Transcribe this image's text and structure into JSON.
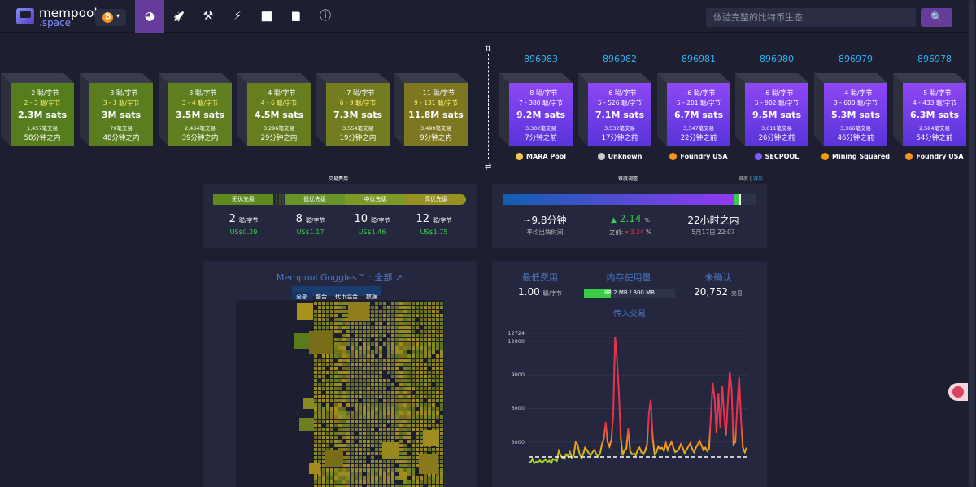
{
  "nav": {
    "logo_top": "mempool",
    "logo_bottom": ".space",
    "network_symbol": "₿",
    "items": [
      {
        "name": "dashboard",
        "icon": "gauge-icon",
        "glyph": "◕",
        "active": true
      },
      {
        "name": "accelerate",
        "icon": "rocket-icon",
        "glyph": "🚀",
        "active": false
      },
      {
        "name": "mining",
        "icon": "hammer-icon",
        "glyph": "⚒",
        "active": false
      },
      {
        "name": "lightning",
        "icon": "bolt-icon",
        "glyph": "⚡",
        "active": false
      },
      {
        "name": "graphs",
        "icon": "chart-area-icon",
        "glyph": "📈",
        "active": false
      },
      {
        "name": "docs",
        "icon": "book-icon",
        "glyph": "📘",
        "active": false
      },
      {
        "name": "about",
        "icon": "info-icon",
        "glyph": "ⓘ",
        "active": false
      }
    ],
    "search_placeholder": "体验完整的比特币生态",
    "search_icon": "🔍"
  },
  "pending_blocks": [
    {
      "fee": "~2 聪/字节",
      "range": "2 - 3 聪/字节",
      "size": "2.3M sats",
      "tx": "1,457笔交易",
      "time": "58分钟之内",
      "color": "#557d1e"
    },
    {
      "fee": "~3 聪/字节",
      "range": "3 - 3 聪/字节",
      "size": "3M sats",
      "tx": "79笔交易",
      "time": "48分钟之内",
      "color": "#5a7e1f"
    },
    {
      "fee": "~3 聪/字节",
      "range": "3 - 4 聪/字节",
      "size": "3.5M sats",
      "tx": "2,464笔交易",
      "time": "39分钟之内",
      "color": "#5f7f20"
    },
    {
      "fee": "~4 聪/字节",
      "range": "4 - 6 聪/字节",
      "size": "4.5M sats",
      "tx": "3,296笔交易",
      "time": "29分钟之内",
      "color": "#677e20"
    },
    {
      "fee": "~7 聪/字节",
      "range": "6 - 9 聪/字节",
      "size": "7.3M sats",
      "tx": "3,554笔交易",
      "time": "19分钟之内",
      "color": "#747c21"
    },
    {
      "fee": "~11 聪/字节",
      "range": "9 - 131 聪/字节",
      "size": "11.8M sats",
      "tx": "3,499笔交易",
      "time": "9分钟之内",
      "color": "#7d7722"
    }
  ],
  "confirmed_blocks": [
    {
      "height": "896983",
      "fee": "~8 聪/字节",
      "range": "7 - 380 聪/字节",
      "size": "9.2M sats",
      "tx": "3,302笔交易",
      "time": "7分钟之前",
      "pool": "MARA Pool",
      "pool_color": "#f2c94c"
    },
    {
      "height": "896982",
      "fee": "~6 聪/字节",
      "range": "5 - 526 聪/字节",
      "size": "7.1M sats",
      "tx": "3,532笔交易",
      "time": "17分钟之前",
      "pool": "Unknown",
      "pool_color": "#cccccc"
    },
    {
      "height": "896981",
      "fee": "~6 聪/字节",
      "range": "5 - 201 聪/字节",
      "size": "6.7M sats",
      "tx": "3,347笔交易",
      "time": "22分钟之前",
      "pool": "Foundry USA",
      "pool_color": "#f7931a"
    },
    {
      "height": "896980",
      "fee": "~6 聪/字节",
      "range": "5 - 902 聪/字节",
      "size": "9.5M sats",
      "tx": "3,611笔交易",
      "time": "26分钟之前",
      "pool": "SECPOOL",
      "pool_color": "#7b5cff"
    },
    {
      "height": "896979",
      "fee": "~4 聪/字节",
      "range": "3 - 600 聪/字节",
      "size": "5.3M sats",
      "tx": "3,366笔交易",
      "time": "46分钟之前",
      "pool": "Mining Squared",
      "pool_color": "#f39c12"
    },
    {
      "height": "896978",
      "fee": "~5 聪/字节",
      "range": "4 - 433 聪/字节",
      "size": "6.3M sats",
      "tx": "2,584笔交易",
      "time": "54分钟之前",
      "pool": "Foundry USA",
      "pool_color": "#f7931a"
    }
  ],
  "fees": {
    "title": "交易费用",
    "unit": "聪/字节",
    "priorities": [
      {
        "label": "无优先级",
        "value": "2",
        "usd": "US$0.29"
      },
      {
        "label": "低优先级",
        "value": "8",
        "usd": "US$1.17"
      },
      {
        "label": "中优先级",
        "value": "10",
        "usd": "US$1.46"
      },
      {
        "label": "高优先级",
        "value": "12",
        "usd": "US$1.75"
      }
    ]
  },
  "difficulty": {
    "title": "难度调整",
    "mode_prefix": "难度 |",
    "mode": "减半",
    "progress_fraction": 0.92,
    "avg_block_time": "~9.8分钟",
    "avg_block_time_label": "平均出块时间",
    "change": "2.14",
    "change_unit": "%",
    "previous_label": "之前:",
    "previous": "3.34",
    "eta": "22小时之内",
    "eta_date": "5月17日 22:07"
  },
  "goggles": {
    "title": "Mempool Goggles™ : 全部",
    "tabs": [
      "全部",
      "整合",
      "代币混合",
      "数据"
    ]
  },
  "mempool": {
    "min_fee_label": "最低费用",
    "min_fee": "1.00",
    "min_fee_unit": "聪/字节",
    "memory_label": "内存使用量",
    "memory": "88.2 MB / 300 MB",
    "memory_fraction": 0.294,
    "unconfirmed_label": "未确认",
    "unconfirmed": "20,752",
    "unconfirmed_unit": "交易",
    "incoming_label": "传入交易"
  },
  "chart_data": {
    "type": "line",
    "title": "传入交易",
    "y_ticks": [
      "12724",
      "12000",
      "9000",
      "6000",
      "3000"
    ],
    "ylim": [
      0,
      12724
    ],
    "threshold": 1670,
    "series": [
      {
        "values": [
          1250,
          1180,
          1500,
          1100,
          1250,
          1200,
          1380,
          1150,
          1300,
          1450,
          1200,
          1350,
          1100,
          1500,
          1400,
          1300,
          2200,
          1800,
          1600,
          1500,
          1900,
          1700,
          2100,
          1600,
          1800,
          3000,
          2800,
          2000,
          1600,
          1900,
          2500,
          2300,
          2000,
          1800,
          2100,
          2300,
          1900,
          1700,
          2000,
          2800,
          3300,
          4800,
          3000,
          2600,
          3200,
          5500,
          12400,
          10400,
          7500,
          3400,
          1800,
          2300,
          2400,
          4200,
          2200,
          1900,
          2000,
          1800,
          2300,
          2500,
          2100,
          1900,
          2200,
          2800,
          5600,
          6800,
          3400,
          1900,
          2100,
          2600,
          2400,
          2500,
          2200,
          2900,
          2300,
          2700,
          3000,
          2500,
          2100,
          2200,
          2400,
          2800,
          2500,
          2000,
          2300,
          2600,
          2900,
          2400,
          2100,
          2500,
          2800,
          3100,
          2700,
          2300,
          2500,
          2200,
          2400,
          5500,
          8300,
          6800,
          3800,
          7400,
          4300,
          8000,
          5500,
          3600,
          6600,
          9300,
          7800,
          2800,
          3000,
          6200,
          8800,
          5000,
          2500,
          2100,
          2500
        ]
      }
    ]
  }
}
